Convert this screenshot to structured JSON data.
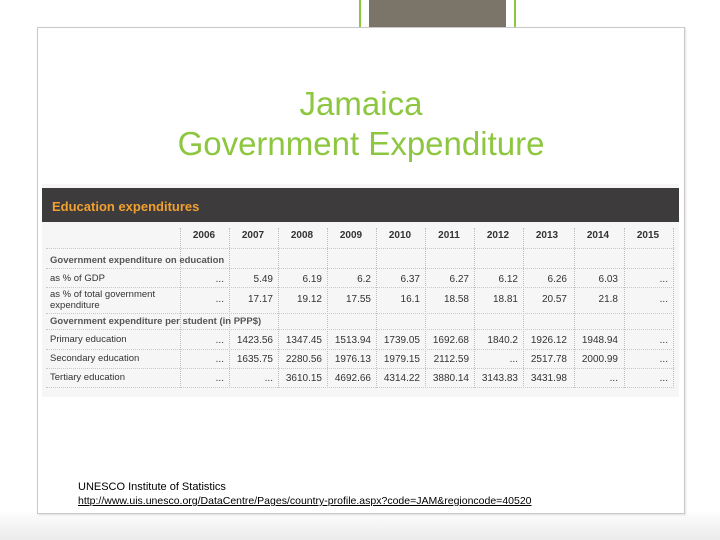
{
  "slide": {
    "title_line1": "Jamaica",
    "title_line2": "Government Expenditure",
    "source_name": "UNESCO Institute of Statistics",
    "source_url": "http://www.uis.unesco.org/DataCentre/Pages/country-profile.aspx?code=JAM&regioncode=40520",
    "accent_color": "#8dc63f"
  },
  "table": {
    "heading": "Education expenditures",
    "years": [
      "2006",
      "2007",
      "2008",
      "2009",
      "2010",
      "2011",
      "2012",
      "2013",
      "2014",
      "2015"
    ],
    "sections": [
      {
        "label": "Government expenditure on education",
        "rows": [
          {
            "label": "as % of GDP",
            "cells": [
              "...",
              "5.49",
              "6.19",
              "6.2",
              "6.37",
              "6.27",
              "6.12",
              "6.26",
              "6.03",
              "..."
            ]
          },
          {
            "label_line1": "as % of total government",
            "label_line2": "expenditure",
            "cells": [
              "...",
              "17.17",
              "19.12",
              "17.55",
              "16.1",
              "18.58",
              "18.81",
              "20.57",
              "21.8",
              "..."
            ]
          }
        ]
      },
      {
        "label": "Government expenditure per student (in PPP$)",
        "rows": [
          {
            "label": "Primary education",
            "cells": [
              "...",
              "1423.56",
              "1347.45",
              "1513.94",
              "1739.05",
              "1692.68",
              "1840.2",
              "1926.12",
              "1948.94",
              "..."
            ]
          },
          {
            "label": "Secondary education",
            "cells": [
              "...",
              "1635.75",
              "2280.56",
              "1976.13",
              "1979.15",
              "2112.59",
              "...",
              "2517.78",
              "2000.99",
              "..."
            ]
          },
          {
            "label": "Tertiary education",
            "cells": [
              "...",
              "...",
              "3610.15",
              "4692.66",
              "4314.22",
              "3880.14",
              "3143.83",
              "3431.98",
              "...",
              "..."
            ]
          }
        ]
      }
    ]
  }
}
